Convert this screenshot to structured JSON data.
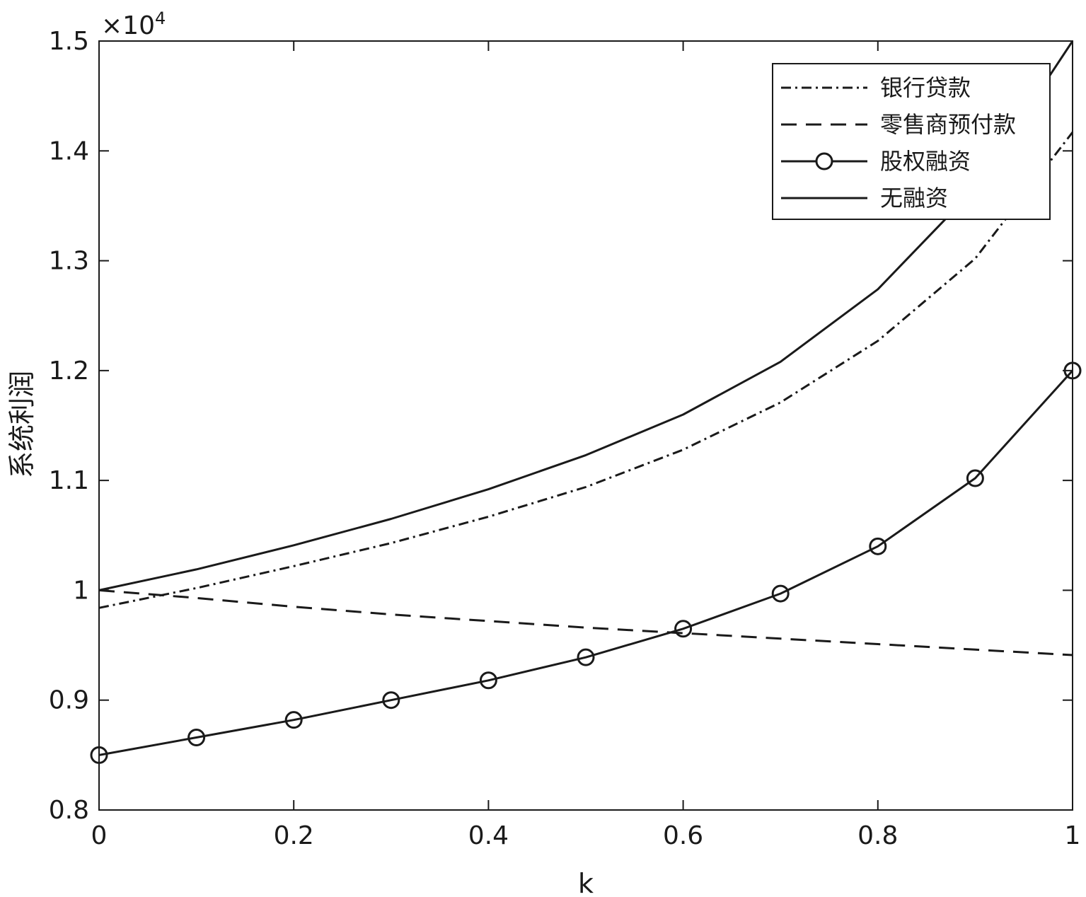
{
  "chart_data": {
    "type": "line",
    "title": "",
    "xlabel": "k",
    "ylabel": "系统利润",
    "y_multiplier": "×10",
    "y_multiplier_exp": "4",
    "xlim": [
      0,
      1
    ],
    "ylim": [
      0.8,
      1.5
    ],
    "xticks": [
      0,
      0.2,
      0.4,
      0.6,
      0.8,
      1
    ],
    "xtick_labels": [
      "0",
      "0.2",
      "0.4",
      "0.6",
      "0.8",
      "1"
    ],
    "yticks": [
      0.8,
      0.9,
      1.0,
      1.1,
      1.2,
      1.3,
      1.4,
      1.5
    ],
    "ytick_labels": [
      "0.8",
      "0.9",
      "1",
      "1.1",
      "1.2",
      "1.3",
      "1.4",
      "1.5"
    ],
    "grid": false,
    "legend_position": "top-right",
    "x": [
      0,
      0.1,
      0.2,
      0.3,
      0.4,
      0.5,
      0.6,
      0.7,
      0.8,
      0.9,
      1.0
    ],
    "series": [
      {
        "name": "银行贷款",
        "style": "dash-dot",
        "marker": "none",
        "values": [
          0.984,
          1.002,
          1.022,
          1.043,
          1.067,
          1.094,
          1.128,
          1.171,
          1.227,
          1.302,
          1.417
        ]
      },
      {
        "name": "零售商预付款",
        "style": "dashed",
        "marker": "none",
        "values": [
          1.0,
          0.993,
          0.985,
          0.978,
          0.972,
          0.966,
          0.961,
          0.956,
          0.951,
          0.946,
          0.941
        ]
      },
      {
        "name": "股权融资",
        "style": "solid",
        "marker": "circle",
        "values": [
          0.85,
          0.866,
          0.882,
          0.9,
          0.918,
          0.939,
          0.965,
          0.997,
          1.04,
          1.102,
          1.2
        ]
      },
      {
        "name": "无融资",
        "style": "solid",
        "marker": "none",
        "values": [
          1.0,
          1.019,
          1.041,
          1.065,
          1.092,
          1.123,
          1.16,
          1.208,
          1.274,
          1.366,
          1.5
        ]
      }
    ],
    "colors": {
      "line": "#1a1a1a",
      "background": "#ffffff"
    }
  }
}
